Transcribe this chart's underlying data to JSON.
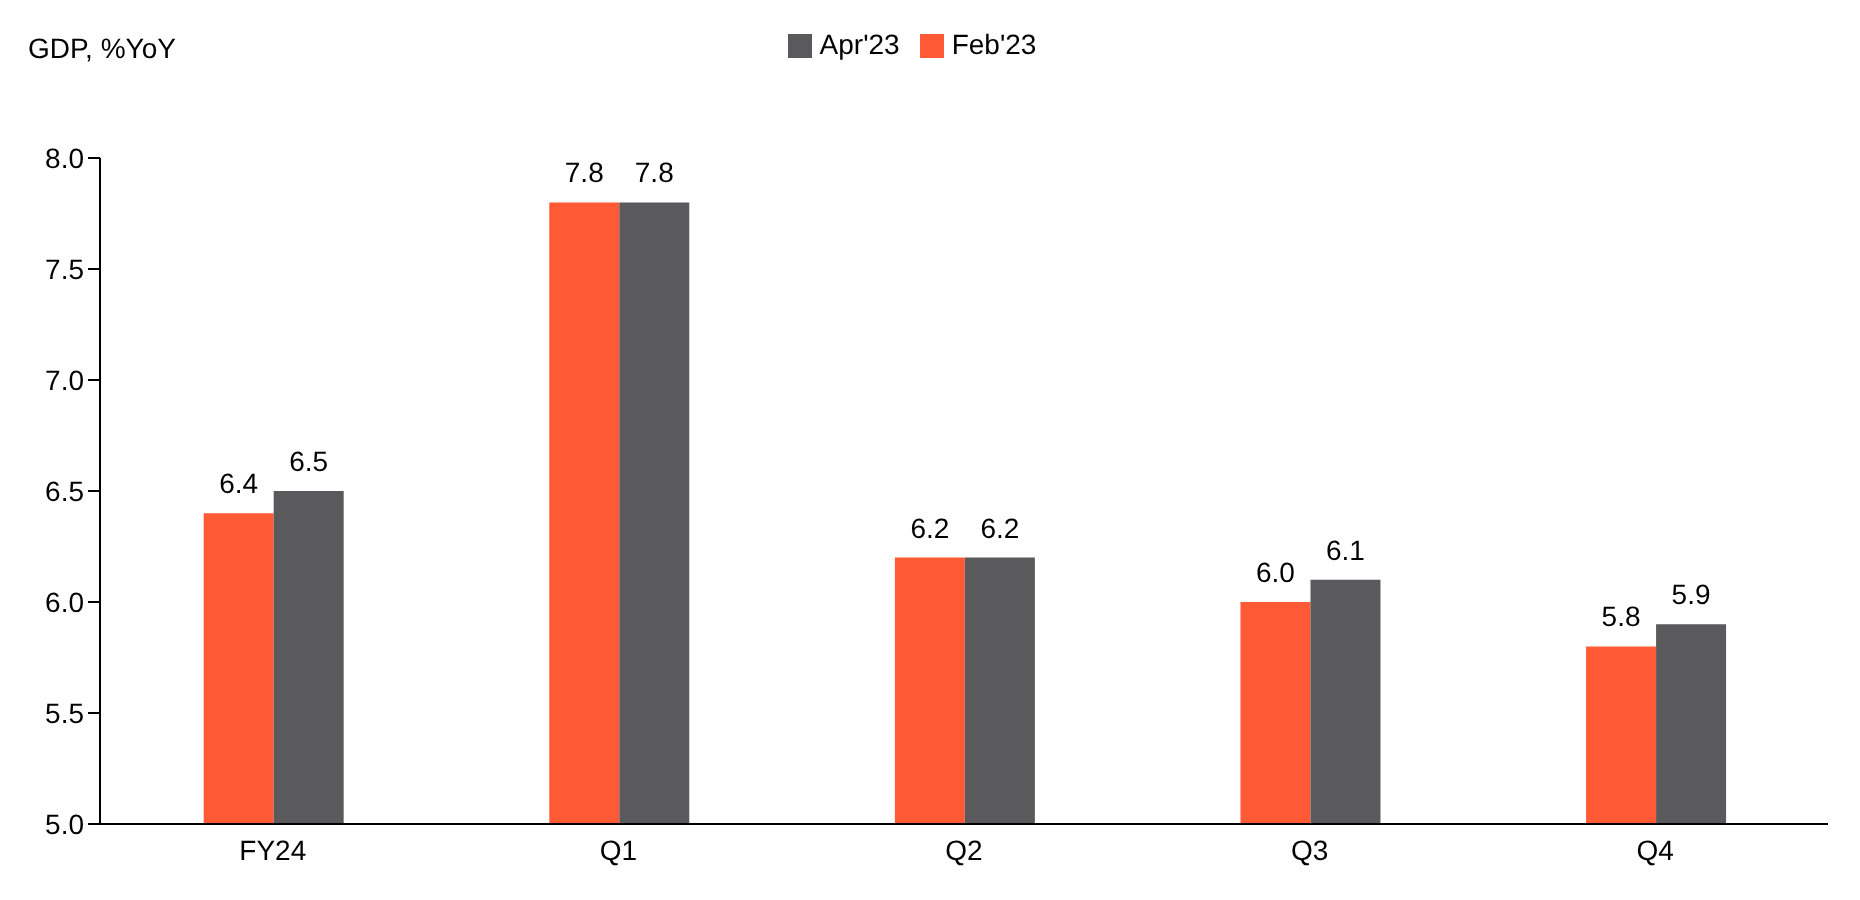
{
  "chart_data": {
    "type": "bar",
    "ylabel": "GDP, %YoY",
    "categories": [
      "FY24",
      "Q1",
      "Q2",
      "Q3",
      "Q4"
    ],
    "series": [
      {
        "name": "Feb'23",
        "color": "#ff5a35",
        "values": [
          6.4,
          7.8,
          6.2,
          6.0,
          5.8
        ],
        "value_labels": [
          "6.4",
          "7.8",
          "6.2",
          "6.0",
          "5.8"
        ]
      },
      {
        "name": "Apr'23",
        "color": "#5a5a5c",
        "values": [
          6.5,
          7.8,
          6.2,
          6.1,
          5.9
        ],
        "value_labels": [
          "6.5",
          "7.8",
          "6.2",
          "6.1",
          "5.9"
        ]
      }
    ],
    "ylim": [
      5,
      8
    ],
    "yticks": [
      {
        "value": 5,
        "label": "5.0"
      },
      {
        "value": 5.5,
        "label": "5.5"
      },
      {
        "value": 6,
        "label": "6.0"
      },
      {
        "value": 6.5,
        "label": "6.5"
      },
      {
        "value": 7,
        "label": "7.0"
      },
      {
        "value": 7.5,
        "label": "7.5"
      },
      {
        "value": 8,
        "label": "8.0"
      }
    ],
    "grid": false,
    "legend": "top"
  }
}
